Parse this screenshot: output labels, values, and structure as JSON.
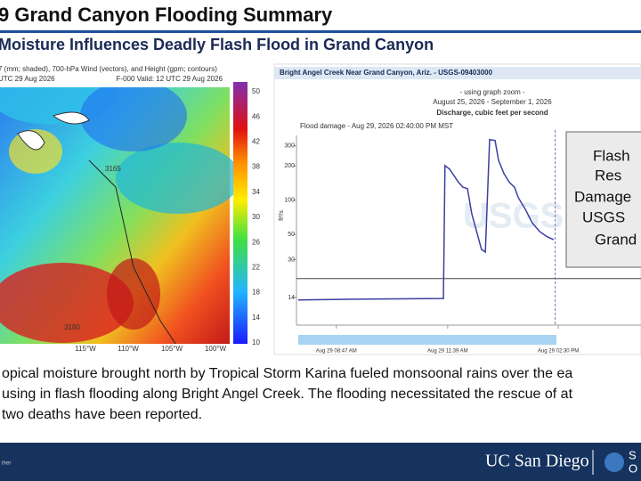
{
  "header": {
    "title": "9 Grand Canyon Flooding Summary",
    "subtitle": "Moisture Influences Deadly Flash Flood in Grand Canyon"
  },
  "map": {
    "caption_lines": [
      "7 (mm; shaded), 700-hPa Wind (vectors), and Height (gpm; contours)",
      "UTC 29 Aug 2026"
    ],
    "valid": "F-000  Valid: 12 UTC 29 Aug 2026",
    "longitudes": [
      "115°W",
      "110°W",
      "105°W",
      "100°W"
    ],
    "contour_labels": [
      "3165",
      "3180"
    ],
    "colorbar_ticks": [
      50,
      46,
      42,
      38,
      34,
      30,
      26,
      22,
      18,
      14,
      10
    ]
  },
  "hydrograph": {
    "site": "Bright Angel Creek Near Grand Canyon, Ariz. - USGS-09403000",
    "zoom_note": "- using graph zoom -",
    "period": "August 25, 2026 - September 1, 2026",
    "ylabel": "Discharge, cubic feet per second",
    "unit": "ft³/s",
    "annotation": "Flood damage - Aug 29, 2026 02:40:00 PM MST",
    "log_scale": true,
    "color": "#3b3fa0",
    "x": [
      7.8,
      9.29,
      11.54,
      11.58,
      11.7,
      11.93,
      12.04,
      12.16,
      12.27,
      12.43,
      12.52,
      12.62,
      12.73,
      12.87,
      12.96,
      13.1,
      13.24,
      13.37,
      13.47,
      13.65,
      13.83,
      14.02,
      14.2,
      14.38
    ],
    "values": [
      13.3,
      13.5,
      13.7,
      201,
      187,
      143,
      130,
      126,
      76,
      48,
      37,
      35,
      340,
      334,
      224,
      171,
      143,
      130,
      105,
      83,
      63,
      53,
      48,
      45
    ],
    "xlim": [
      7.8,
      16.63
    ],
    "ylim": [
      8,
      370
    ],
    "xticks": [
      {
        "value": 8.78,
        "label": "Aug 29 08:47 AM"
      },
      {
        "value": 11.65,
        "label": "Aug 29 11:39 AM"
      },
      {
        "value": 14.5,
        "label": "Aug 29 02:30 PM"
      }
    ],
    "yticks": [
      14,
      30,
      50,
      100,
      200,
      300
    ],
    "reference_level": 20.5,
    "damage_time": 14.42
  },
  "text_box": {
    "lines": [
      "Flash",
      "Res",
      "Damage",
      "USGS",
      "Grand"
    ]
  },
  "body": {
    "lines": [
      "opical moisture brought north by Tropical Storm Karina fueled monsoonal rains over the ea",
      "using in flash flooding along Bright Angel Creek. The flooding necessitated the rescue of at",
      "two deaths have been reported."
    ]
  },
  "footer": {
    "note": "ther",
    "logo": "UC San Diego",
    "logo2": "S",
    "logo3": "O"
  }
}
